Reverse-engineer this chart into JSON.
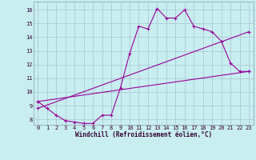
{
  "xlabel": "Windchill (Refroidissement éolien,°C)",
  "background_color": "#c8eef0",
  "grid_color": "#b0c8d8",
  "line_color": "#990099",
  "xlim": [
    -0.5,
    23.5
  ],
  "ylim": [
    7.6,
    16.6
  ],
  "xticks": [
    0,
    1,
    2,
    3,
    4,
    5,
    6,
    7,
    8,
    9,
    10,
    11,
    12,
    13,
    14,
    15,
    16,
    17,
    18,
    19,
    20,
    21,
    22,
    23
  ],
  "yticks": [
    8,
    9,
    10,
    11,
    12,
    13,
    14,
    15,
    16
  ],
  "line1_x": [
    0,
    1,
    2,
    3,
    4,
    5,
    6,
    7,
    8,
    9,
    10,
    11,
    12,
    13,
    14,
    15,
    16,
    17,
    18,
    19,
    20,
    21,
    22,
    23
  ],
  "line1_y": [
    9.3,
    8.8,
    8.3,
    7.9,
    7.8,
    7.7,
    7.7,
    8.3,
    8.3,
    10.3,
    12.8,
    14.8,
    14.6,
    16.1,
    15.4,
    15.4,
    16.0,
    14.8,
    14.6,
    14.4,
    13.7,
    12.1,
    11.5,
    11.5
  ],
  "line2_x": [
    0,
    23
  ],
  "line2_y": [
    9.3,
    11.5
  ],
  "line3_x": [
    0,
    23
  ],
  "line3_y": [
    8.8,
    14.4
  ],
  "xlabel_fontsize": 5.5,
  "tick_fontsize": 5,
  "linewidth": 0.8,
  "markersize": 2.5
}
